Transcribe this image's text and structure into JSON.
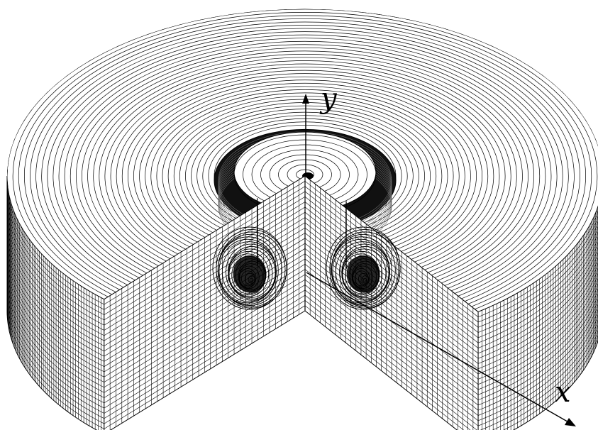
{
  "figure": {
    "axes": {
      "y_label": "y",
      "x_label": "x"
    },
    "colors": {
      "background": "#ffffff",
      "mesh_line": "#000000",
      "face_fill": "#ffffff"
    },
    "mesh": {
      "outer_rings": 36,
      "inner_rings": 12,
      "hub_rings": 8,
      "vertical_layers": 26,
      "face_columns": 34
    }
  }
}
